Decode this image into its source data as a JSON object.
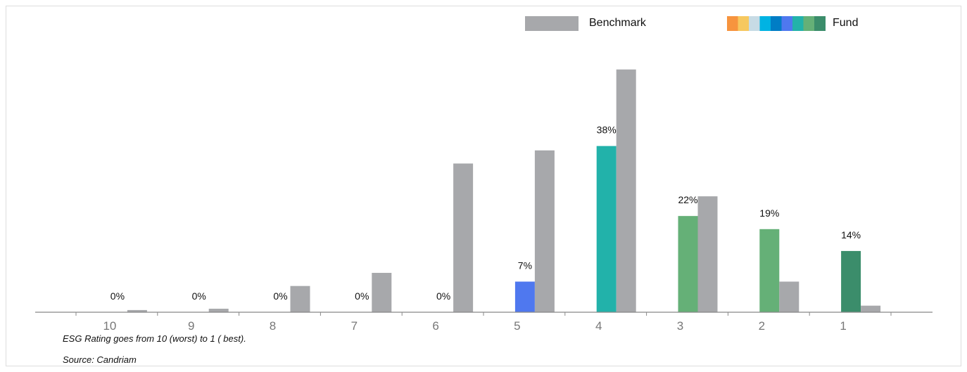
{
  "chart_data": {
    "type": "bar",
    "categories": [
      "10",
      "9",
      "8",
      "7",
      "6",
      "5",
      "4",
      "3",
      "2",
      "1"
    ],
    "series": [
      {
        "name": "Fund",
        "values": [
          0,
          0,
          0,
          0,
          0,
          7,
          38,
          22,
          19,
          14
        ],
        "labels": [
          "0%",
          "0%",
          "0%",
          "0%",
          "0%",
          "7%",
          "38%",
          "22%",
          "19%",
          "14%"
        ]
      },
      {
        "name": "Benchmark",
        "values": [
          0.5,
          0.8,
          6,
          9,
          34,
          37,
          55.5,
          26.5,
          7,
          1.5
        ]
      }
    ],
    "ylim": [
      0,
      70
    ],
    "colors": {
      "benchmark": "#a7a8ab",
      "fund_by_category": [
        "#f7943e",
        "#f6c85f",
        "#c7dbe5",
        "#00b3e3",
        "#007dc5",
        "#4f78ef",
        "#22b2aa",
        "#65b077",
        "#65b077",
        "#3b8d6b"
      ],
      "legend_fund_swatches": [
        "#f7943e",
        "#f6c85f",
        "#c7dbe5",
        "#00b3e3",
        "#007dc5",
        "#4f78ef",
        "#22b2aa",
        "#65b077",
        "#3b8d6b"
      ]
    },
    "legend": {
      "benchmark_label": "Benchmark",
      "fund_label": "Fund",
      "placement": "top-right"
    }
  },
  "footer": {
    "note": "ESG Rating goes from 10 (worst) to 1 ( best).",
    "source": "Source: Candriam"
  }
}
